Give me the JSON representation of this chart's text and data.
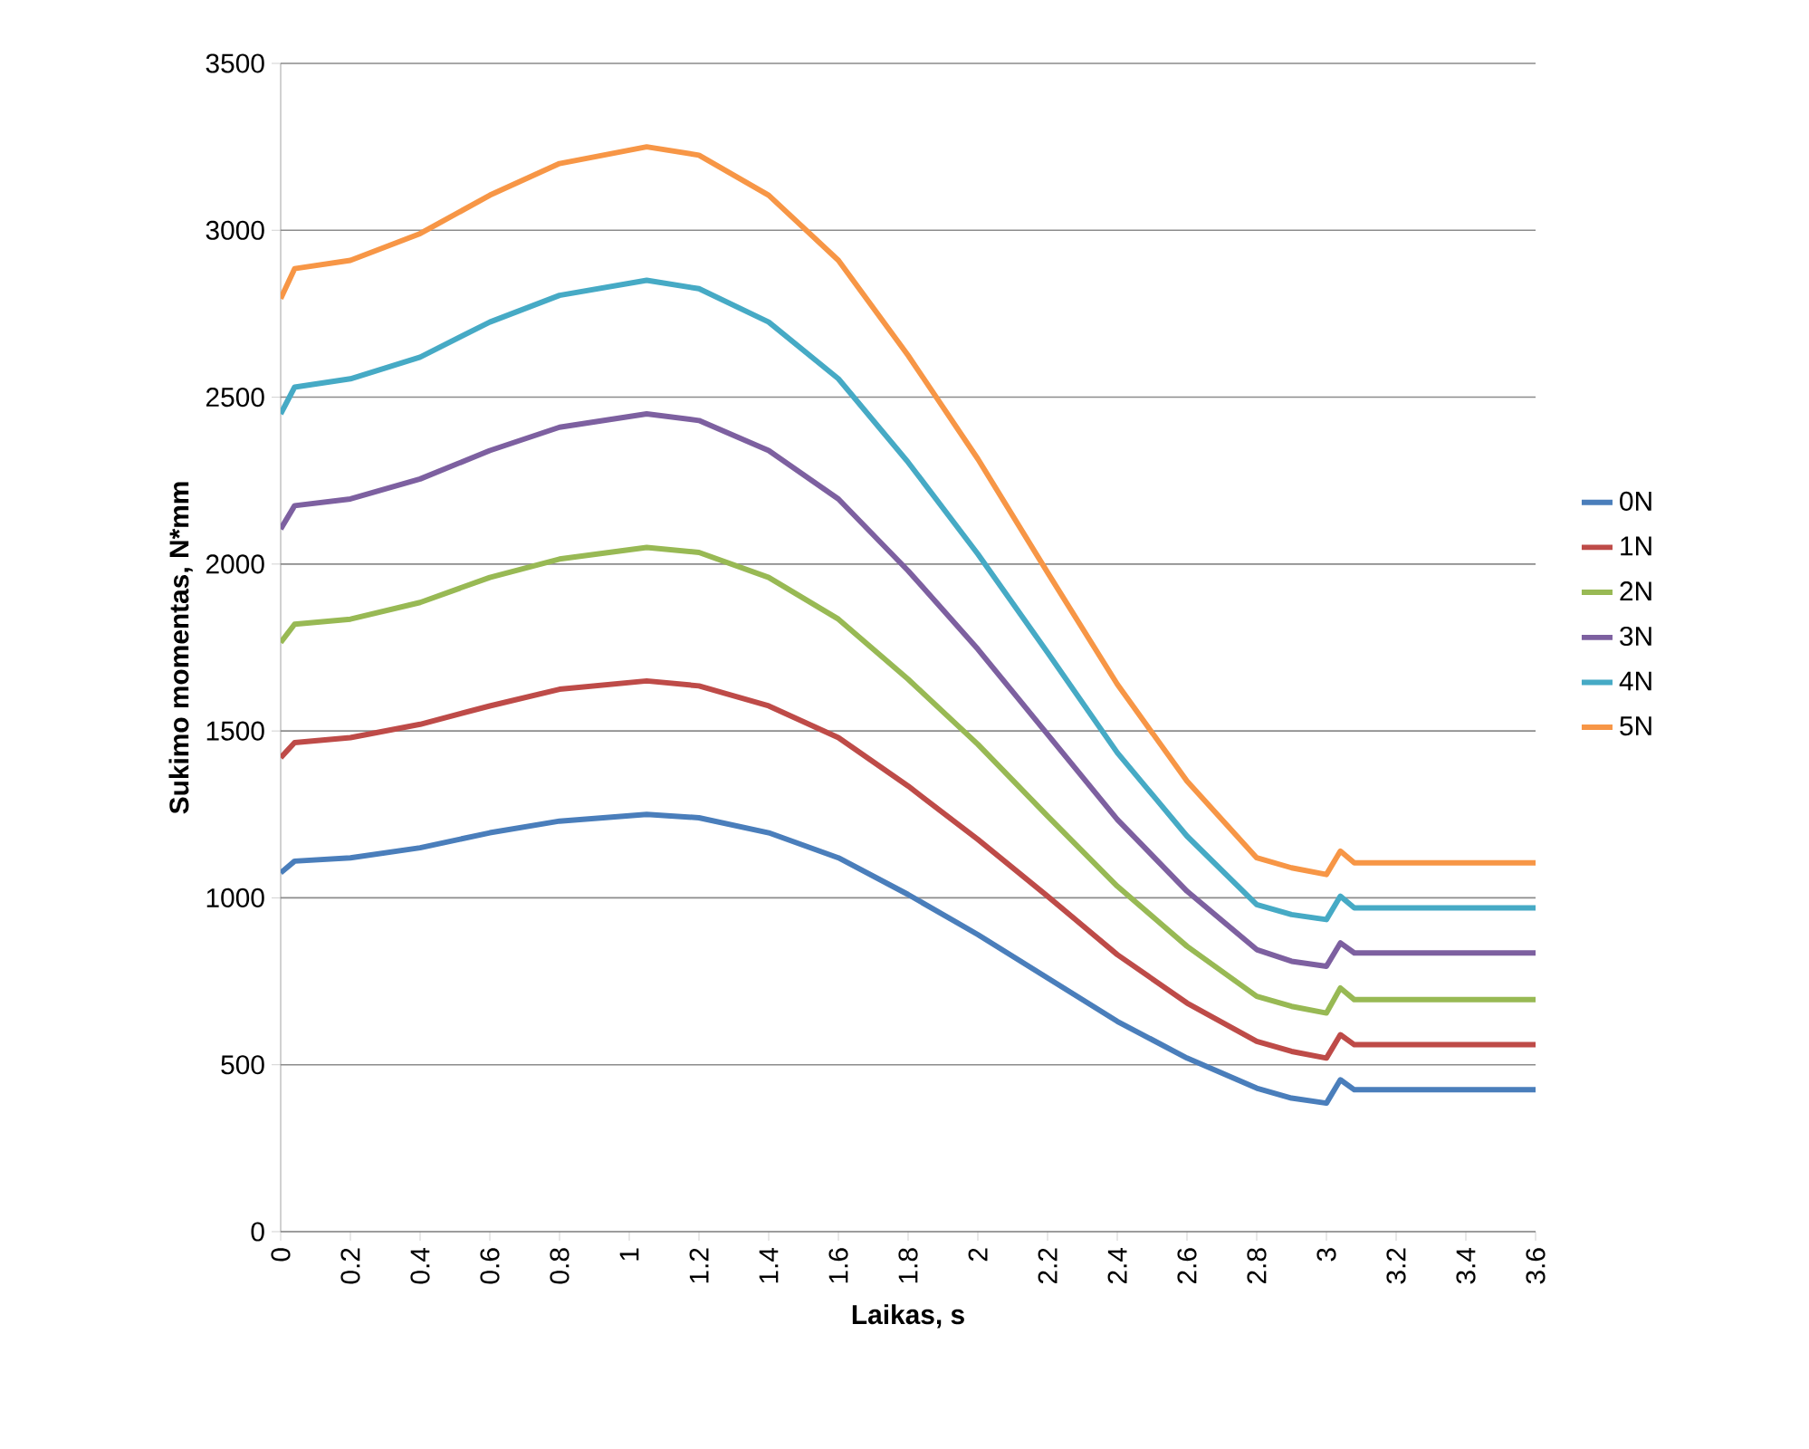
{
  "chart_data": {
    "type": "line",
    "xlabel": "Laikas, s",
    "ylabel": "Sukimo momentas, N*mm",
    "x": [
      0,
      0.04,
      0.2,
      0.4,
      0.6,
      0.8,
      1.05,
      1.2,
      1.4,
      1.6,
      1.8,
      2.0,
      2.2,
      2.4,
      2.6,
      2.8,
      2.9,
      3.0,
      3.04,
      3.08,
      3.6
    ],
    "series": [
      {
        "name": "0N",
        "color": "#4a7ebb",
        "values": [
          1075,
          1110,
          1120,
          1150,
          1195,
          1230,
          1250,
          1240,
          1195,
          1120,
          1010,
          890,
          760,
          630,
          520,
          430,
          400,
          385,
          455,
          425,
          425
        ]
      },
      {
        "name": "1N",
        "color": "#be4b48",
        "values": [
          1420,
          1465,
          1480,
          1520,
          1575,
          1625,
          1650,
          1635,
          1575,
          1480,
          1335,
          1175,
          1005,
          830,
          685,
          570,
          540,
          520,
          590,
          560,
          560
        ]
      },
      {
        "name": "2N",
        "color": "#98b954",
        "values": [
          1765,
          1820,
          1835,
          1885,
          1960,
          2015,
          2050,
          2035,
          1960,
          1835,
          1655,
          1460,
          1245,
          1035,
          855,
          705,
          675,
          655,
          730,
          695,
          695
        ]
      },
      {
        "name": "3N",
        "color": "#7d60a0",
        "values": [
          2105,
          2175,
          2195,
          2255,
          2340,
          2410,
          2450,
          2430,
          2340,
          2195,
          1980,
          1745,
          1490,
          1235,
          1020,
          845,
          810,
          795,
          865,
          835,
          835
        ]
      },
      {
        "name": "4N",
        "color": "#46aac5",
        "values": [
          2450,
          2530,
          2555,
          2620,
          2725,
          2805,
          2850,
          2825,
          2725,
          2555,
          2305,
          2030,
          1735,
          1435,
          1185,
          980,
          950,
          935,
          1005,
          970,
          970
        ]
      },
      {
        "name": "5N",
        "color": "#f79646",
        "values": [
          2795,
          2885,
          2910,
          2990,
          3105,
          3200,
          3250,
          3225,
          3105,
          2910,
          2625,
          2315,
          1975,
          1640,
          1350,
          1120,
          1090,
          1070,
          1140,
          1105,
          1105
        ]
      }
    ],
    "xlim": [
      0,
      3.6
    ],
    "ylim": [
      0,
      3500
    ],
    "xticks": [
      0,
      0.2,
      0.4,
      0.6,
      0.8,
      1,
      1.2,
      1.4,
      1.6,
      1.8,
      2,
      2.2,
      2.4,
      2.6,
      2.8,
      3,
      3.2,
      3.4,
      3.6
    ],
    "yticks": [
      0,
      500,
      1000,
      1500,
      2000,
      2500,
      3000,
      3500
    ],
    "grid": "y",
    "legend": "right",
    "marker": "none",
    "line_style": "solid"
  }
}
